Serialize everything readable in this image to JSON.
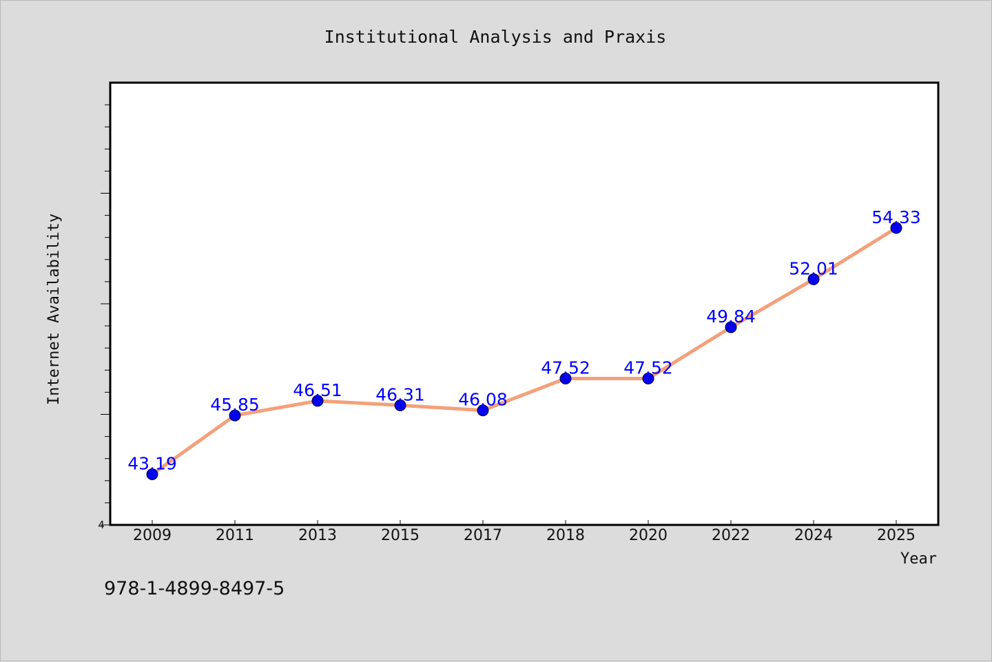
{
  "chart_data": {
    "type": "line",
    "title": "Institutional Analysis and Praxis",
    "xlabel": "Year",
    "ylabel": "Internet Availability",
    "categories": [
      "2009",
      "2011",
      "2013",
      "2015",
      "2017",
      "2018",
      "2020",
      "2022",
      "2024",
      "2025"
    ],
    "series": [
      {
        "values": [
          43.19,
          45.85,
          46.51,
          46.31,
          46.08,
          47.52,
          47.52,
          49.84,
          52.01,
          54.33
        ],
        "line_color": "#f4a07a",
        "marker_color": "#0000ee"
      }
    ],
    "data_labels": [
      "43.19",
      "45.85",
      "46.51",
      "46.31",
      "46.08",
      "47.52",
      "47.52",
      "49.84",
      "52.01",
      "54.33"
    ],
    "ylim": [
      40.9,
      60.9
    ],
    "y_tick_labels": [
      "4"
    ],
    "grid": false,
    "legend": "none"
  },
  "footer": {
    "isbn": "978-1-4899-8497-5"
  },
  "colors": {
    "background": "#dcdcdc",
    "plot_background": "#ffffff",
    "line": "#f4a07a",
    "marker": "#0000ee",
    "data_label": "#0000ff"
  }
}
